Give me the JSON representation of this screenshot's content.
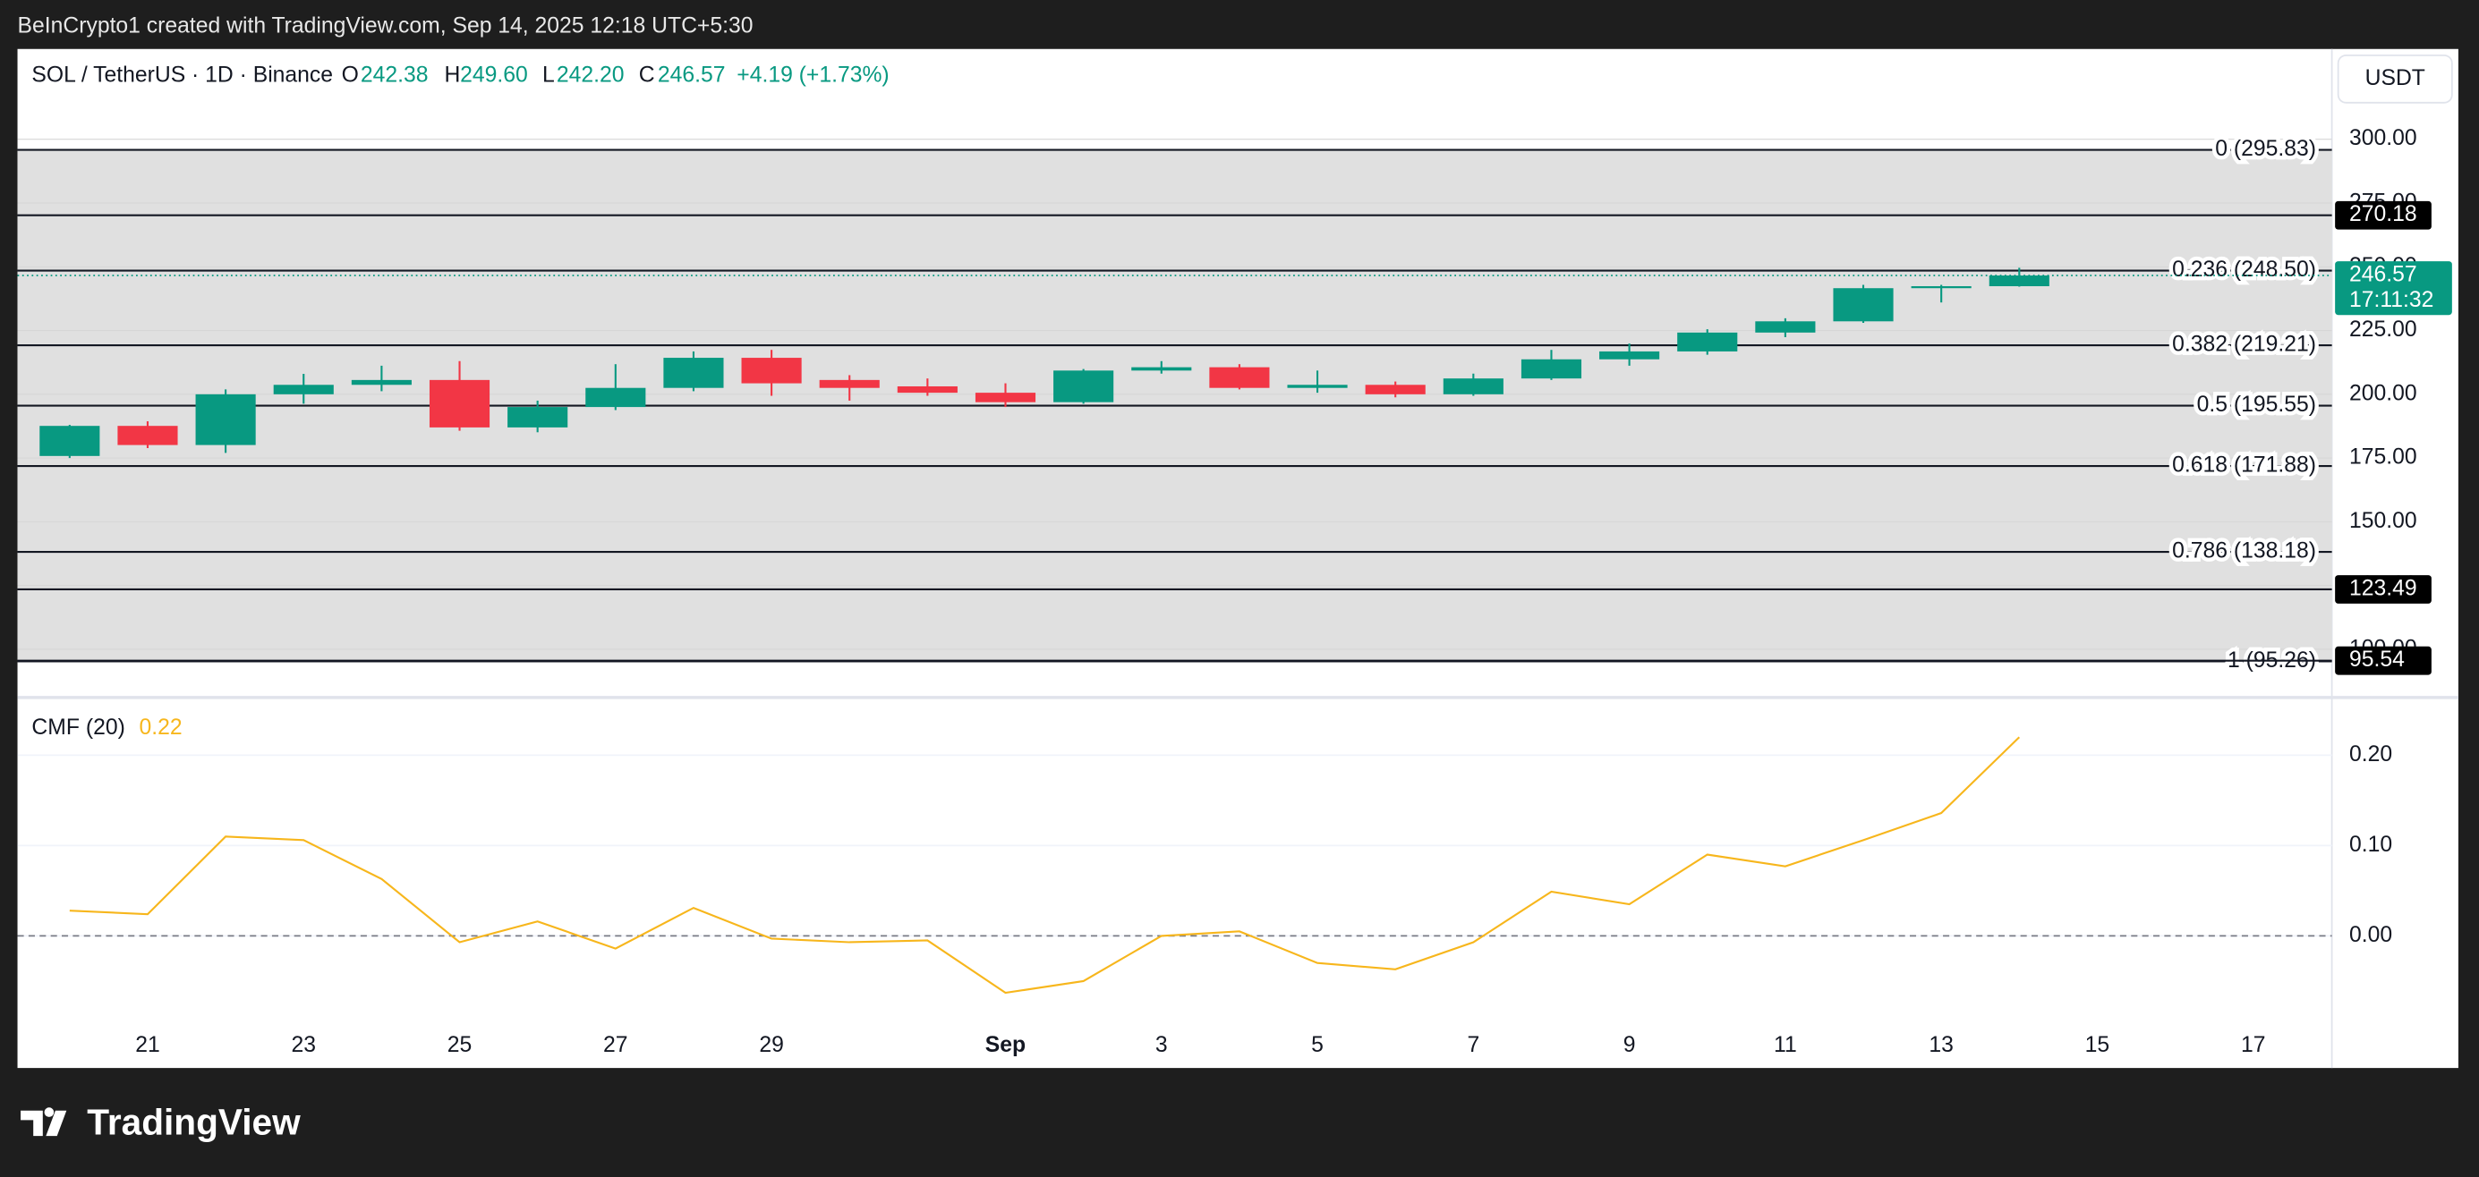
{
  "header": {
    "attribution": "BeInCrypto1 created with TradingView.com, Sep 14, 2025 12:18 UTC+5:30"
  },
  "chart_data": [
    {
      "type": "candlestick",
      "title": "SOL / TetherUS · 1D · Binance",
      "ohlc_labels": [
        "O",
        "H",
        "L",
        "C"
      ],
      "ohlc_values": [
        "242.38",
        "249.60",
        "242.20",
        "246.57"
      ],
      "change": "+4.19 (+1.73%)",
      "currency": "USDT",
      "countdown": "17:11:32",
      "categories": [
        null,
        "21",
        null,
        "23",
        null,
        "25",
        null,
        "27",
        null,
        "29",
        null,
        null,
        "Sep",
        null,
        "3",
        null,
        "5",
        null,
        "7",
        null,
        "9",
        null,
        "11",
        null,
        "13",
        null,
        "15",
        null,
        "17"
      ],
      "open": [
        175.8,
        187.6,
        180.1,
        200,
        203.7,
        205.6,
        187,
        195,
        202.5,
        214.3,
        205.6,
        203.1,
        200.6,
        196.9,
        209.3,
        210.6,
        202.5,
        203.7,
        200,
        206.2,
        213.7,
        216.8,
        224.2,
        228.6,
        241.6,
        242.38,
        null,
        null,
        null
      ],
      "high": [
        188,
        189.4,
        201.9,
        208,
        211.2,
        213,
        197.5,
        211.8,
        216.8,
        217.4,
        207.5,
        206.2,
        204.3,
        209.9,
        213,
        211.8,
        209.3,
        205,
        208.1,
        217.4,
        219.9,
        225.5,
        229.8,
        242.9,
        242.9,
        249.6,
        null,
        null,
        null
      ],
      "low": [
        175,
        178.9,
        177,
        196.3,
        201.2,
        185.7,
        185.1,
        193.8,
        201.2,
        199.4,
        197.5,
        199.4,
        195,
        196.3,
        208.1,
        201.9,
        200.6,
        198.8,
        199.4,
        205.6,
        211.2,
        215.5,
        222.4,
        228,
        236,
        242.2,
        null,
        null,
        null
      ],
      "close": [
        187.6,
        180.1,
        200,
        203.7,
        205.6,
        187,
        195,
        202.5,
        214.3,
        204.3,
        202.5,
        200.6,
        196.9,
        209.3,
        210.6,
        202.5,
        203.7,
        200,
        206.2,
        213.7,
        216.8,
        224.2,
        228.6,
        241.6,
        242.38,
        246.57,
        null,
        null,
        null
      ],
      "up_color": "#089981",
      "down_color": "#f23645",
      "ylim": [
        81.4,
        335.4
      ],
      "yticks": [
        {
          "value": 100,
          "label": "100.00"
        },
        {
          "value": 125,
          "label": "125.00"
        },
        {
          "value": 150,
          "label": "150.00"
        },
        {
          "value": 175,
          "label": "175.00"
        },
        {
          "value": 200,
          "label": "200.00"
        },
        {
          "value": 225,
          "label": "225.00"
        },
        {
          "value": 250,
          "label": "250.00"
        },
        {
          "value": 275,
          "label": "275.00"
        },
        {
          "value": 300,
          "label": "300.00"
        }
      ],
      "grid": true,
      "fib_levels": [
        {
          "value": 295.83,
          "label": "0 (295.83)"
        },
        {
          "value": 248.5,
          "label": "0.236 (248.50)"
        },
        {
          "value": 219.21,
          "label": "0.382 (219.21)"
        },
        {
          "value": 195.55,
          "label": "0.5 (195.55)"
        },
        {
          "value": 171.88,
          "label": "0.618 (171.88)"
        },
        {
          "value": 138.18,
          "label": "0.786 (138.18)"
        },
        {
          "value": 95.26,
          "label": "1 (95.26)"
        }
      ],
      "price_lines": [
        270.18,
        123.49,
        95.54
      ]
    },
    {
      "type": "line",
      "title": "CMF (20)",
      "series": [
        {
          "name": "CMF (20)",
          "color": "#f7b61c",
          "values": [
            0.028,
            0.024,
            0.11,
            0.106,
            0.063,
            -0.007,
            0.016,
            -0.014,
            0.031,
            -0.003,
            -0.007,
            -0.005,
            -0.063,
            -0.05,
            0.0,
            0.005,
            -0.03,
            -0.037,
            -0.007,
            0.049,
            0.035,
            0.09,
            0.077,
            0.106,
            0.136,
            0.22,
            null,
            null,
            null
          ]
        }
      ],
      "ylim": [
        -0.092,
        0.263
      ],
      "yticks": [
        {
          "value": 0,
          "label": "0.00"
        },
        {
          "value": 0.1,
          "label": "0.10"
        },
        {
          "value": 0.2,
          "label": "0.20"
        }
      ],
      "zero_line": true
    }
  ],
  "footer": {
    "brand": "TradingView"
  }
}
